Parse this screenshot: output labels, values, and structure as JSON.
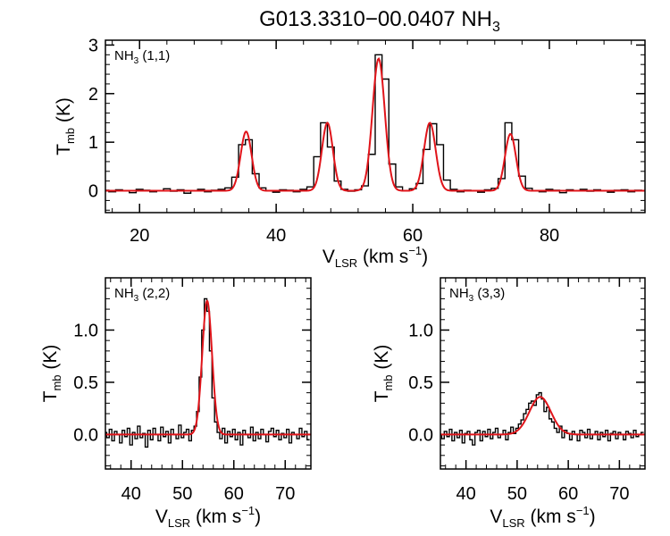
{
  "figure": {
    "title_main": "G013.3310−00.0407 NH",
    "title_sub": "3"
  },
  "colors": {
    "observed": "#000000",
    "fit": "#e0141a",
    "frame": "#000000"
  },
  "chart_data": [
    {
      "type": "line",
      "label_text": "NH",
      "label_sub": "3",
      "label_suffix": " (1,1)",
      "xlim": [
        15,
        94
      ],
      "ylim": [
        -0.45,
        3.1
      ],
      "xticks": [
        20,
        40,
        60,
        80
      ],
      "yticks": [
        0,
        1,
        2,
        3
      ],
      "xtick_labels": [
        "20",
        "40",
        "60",
        "80"
      ],
      "ytick_labels": [
        "0",
        "1",
        "2",
        "3"
      ],
      "ylabel": {
        "main": "T",
        "sub": "mb",
        "tail": " (K)"
      },
      "xlabel": {
        "main": "V",
        "sub": "LSR",
        "tail": " (km s",
        "sup": "−1",
        "close": ")"
      },
      "series": [
        {
          "style": "step",
          "x": [
            15,
            16,
            17,
            18,
            19,
            20,
            21,
            22,
            23,
            24,
            25,
            26,
            27,
            28,
            29,
            30,
            31,
            32,
            33,
            34,
            35,
            36,
            37,
            38,
            39,
            40,
            41,
            42,
            43,
            44,
            45,
            46,
            47,
            48,
            49,
            50,
            51,
            52,
            53,
            54,
            55,
            56,
            57,
            58,
            59,
            60,
            61,
            62,
            63,
            64,
            65,
            66,
            67,
            68,
            69,
            70,
            71,
            72,
            73,
            74,
            75,
            76,
            77,
            78,
            79,
            80,
            81,
            82,
            83,
            84,
            85,
            86,
            87,
            88,
            89,
            90,
            91,
            92,
            93,
            94
          ],
          "y": [
            0.01,
            -0.02,
            0.02,
            0.0,
            -0.04,
            0.03,
            0.01,
            -0.02,
            0.0,
            0.04,
            -0.01,
            0.02,
            -0.05,
            0.0,
            0.03,
            -0.02,
            0.01,
            0.03,
            0.06,
            0.28,
            0.95,
            1.05,
            0.35,
            0.06,
            0.0,
            -0.03,
            0.02,
            0.01,
            -0.02,
            0.03,
            0.08,
            0.7,
            1.4,
            0.9,
            0.2,
            0.03,
            -0.01,
            0.02,
            0.1,
            0.75,
            2.8,
            2.3,
            0.55,
            0.08,
            0.0,
            0.04,
            0.15,
            0.85,
            1.38,
            0.95,
            0.22,
            0.03,
            -0.02,
            0.01,
            0.0,
            -0.03,
            0.02,
            0.05,
            0.25,
            1.4,
            1.05,
            0.3,
            0.05,
            0.0,
            -0.02,
            0.03,
            0.01,
            -0.04,
            0.02,
            0.0,
            0.03,
            -0.01,
            0.02,
            0.0,
            -0.03,
            0.01,
            0.02,
            -0.02,
            0.01,
            0.0
          ]
        },
        {
          "style": "gaussians",
          "peaks": [
            {
              "center": 35.6,
              "amp": 1.22,
              "sigma": 0.8
            },
            {
              "center": 47.5,
              "amp": 1.4,
              "sigma": 0.8
            },
            {
              "center": 55.0,
              "amp": 2.72,
              "sigma": 0.9
            },
            {
              "center": 62.5,
              "amp": 1.4,
              "sigma": 0.85
            },
            {
              "center": 74.3,
              "amp": 1.17,
              "sigma": 0.8
            }
          ]
        }
      ]
    },
    {
      "type": "line",
      "label_text": "NH",
      "label_sub": "3",
      "label_suffix": " (2,2)",
      "xlim": [
        35,
        75
      ],
      "ylim": [
        -0.33,
        1.5
      ],
      "xticks": [
        40,
        50,
        60,
        70
      ],
      "yticks": [
        0,
        0.5,
        1.0
      ],
      "xtick_labels": [
        "40",
        "50",
        "60",
        "70"
      ],
      "ytick_labels": [
        "0.0",
        "0.5",
        "1.0"
      ],
      "ylabel": {
        "main": "T",
        "sub": "mb",
        "tail": " (K)"
      },
      "xlabel": {
        "main": "V",
        "sub": "LSR",
        "tail": " (km s",
        "sup": "−1",
        "close": ")"
      },
      "series": [
        {
          "style": "step",
          "x": [
            35,
            35.5,
            36,
            36.5,
            37,
            37.5,
            38,
            38.5,
            39,
            39.5,
            40,
            40.5,
            41,
            41.5,
            42,
            42.5,
            43,
            43.5,
            44,
            44.5,
            45,
            45.5,
            46,
            46.5,
            47,
            47.5,
            48,
            48.5,
            49,
            49.5,
            50,
            50.5,
            51,
            51.5,
            52,
            52.5,
            53,
            53.5,
            54,
            54.5,
            55,
            55.5,
            56,
            56.5,
            57,
            57.5,
            58,
            58.5,
            59,
            59.5,
            60,
            60.5,
            61,
            61.5,
            62,
            62.5,
            63,
            63.5,
            64,
            64.5,
            65,
            65.5,
            66,
            66.5,
            67,
            67.5,
            68,
            68.5,
            69,
            69.5,
            70,
            70.5,
            71,
            71.5,
            72,
            72.5,
            73,
            73.5,
            74,
            74.5
          ],
          "y": [
            0.02,
            -0.03,
            0.05,
            -0.06,
            0.03,
            0.0,
            -0.08,
            0.04,
            -0.02,
            0.06,
            -0.1,
            0.02,
            -0.04,
            0.08,
            -0.03,
            0.01,
            -0.12,
            0.04,
            -0.05,
            0.06,
            0.0,
            -0.06,
            0.07,
            -0.02,
            0.03,
            -0.08,
            0.05,
            0.0,
            -0.04,
            0.09,
            -0.03,
            0.02,
            0.05,
            -0.06,
            0.04,
            0.08,
            0.22,
            0.55,
            1.0,
            1.3,
            1.18,
            0.8,
            0.35,
            0.12,
            0.02,
            -0.04,
            0.06,
            -0.08,
            0.03,
            -0.02,
            0.05,
            -0.05,
            0.02,
            -0.1,
            0.04,
            0.0,
            -0.03,
            0.07,
            -0.06,
            0.02,
            -0.04,
            0.05,
            0.0,
            -0.07,
            0.03,
            0.06,
            -0.02,
            0.04,
            -0.05,
            0.01,
            -0.03,
            0.05,
            -0.08,
            0.02,
            0.0,
            -0.04,
            0.06,
            -0.02,
            0.03,
            -0.05
          ]
        },
        {
          "style": "gaussians",
          "peaks": [
            {
              "center": 54.8,
              "amp": 1.28,
              "sigma": 0.95
            }
          ]
        }
      ]
    },
    {
      "type": "line",
      "label_text": "NH",
      "label_sub": "3",
      "label_suffix": " (3,3)",
      "xlim": [
        35,
        75
      ],
      "ylim": [
        -0.33,
        1.5
      ],
      "xticks": [
        40,
        50,
        60,
        70
      ],
      "yticks": [
        0,
        0.5,
        1.0
      ],
      "xtick_labels": [
        "40",
        "50",
        "60",
        "70"
      ],
      "ytick_labels": [
        "0.0",
        "0.5",
        "1.0"
      ],
      "ylabel": {
        "main": "T",
        "sub": "mb",
        "tail": " (K)"
      },
      "xlabel": {
        "main": "V",
        "sub": "LSR",
        "tail": " (km s",
        "sup": "−1",
        "close": ")"
      },
      "series": [
        {
          "style": "step",
          "x": [
            35,
            35.5,
            36,
            36.5,
            37,
            37.5,
            38,
            38.5,
            39,
            39.5,
            40,
            40.5,
            41,
            41.5,
            42,
            42.5,
            43,
            43.5,
            44,
            44.5,
            45,
            45.5,
            46,
            46.5,
            47,
            47.5,
            48,
            48.5,
            49,
            49.5,
            50,
            50.5,
            51,
            51.5,
            52,
            52.5,
            53,
            53.5,
            54,
            54.5,
            55,
            55.5,
            56,
            56.5,
            57,
            57.5,
            58,
            58.5,
            59,
            59.5,
            60,
            60.5,
            61,
            61.5,
            62,
            62.5,
            63,
            63.5,
            64,
            64.5,
            65,
            65.5,
            66,
            66.5,
            67,
            67.5,
            68,
            68.5,
            69,
            69.5,
            70,
            70.5,
            71,
            71.5,
            72,
            72.5,
            73,
            73.5,
            74,
            74.5
          ],
          "y": [
            0.0,
            -0.04,
            0.03,
            -0.02,
            0.05,
            -0.06,
            0.02,
            -0.03,
            0.04,
            -0.08,
            0.01,
            0.03,
            -0.05,
            -0.1,
            0.02,
            0.04,
            -0.06,
            0.03,
            -0.02,
            0.05,
            -0.04,
            0.02,
            0.06,
            -0.03,
            0.0,
            0.04,
            -0.05,
            0.02,
            0.07,
            0.01,
            0.06,
            0.1,
            0.14,
            0.2,
            0.24,
            0.3,
            0.32,
            0.28,
            0.38,
            0.4,
            0.34,
            0.22,
            0.26,
            0.15,
            0.12,
            0.06,
            0.02,
            0.08,
            -0.03,
            0.04,
            0.01,
            -0.05,
            0.03,
            0.0,
            -0.06,
            0.04,
            0.02,
            -0.03,
            0.05,
            -0.04,
            0.0,
            0.03,
            -0.05,
            0.02,
            -0.02,
            0.04,
            -0.06,
            0.01,
            0.03,
            -0.04,
            0.02,
            0.0,
            -0.05,
            0.03,
            0.01,
            -0.03,
            0.04,
            -0.02,
            0.0,
            0.02
          ]
        },
        {
          "style": "gaussians",
          "peaks": [
            {
              "center": 54.5,
              "amp": 0.36,
              "sigma": 2.1
            }
          ]
        }
      ]
    }
  ]
}
